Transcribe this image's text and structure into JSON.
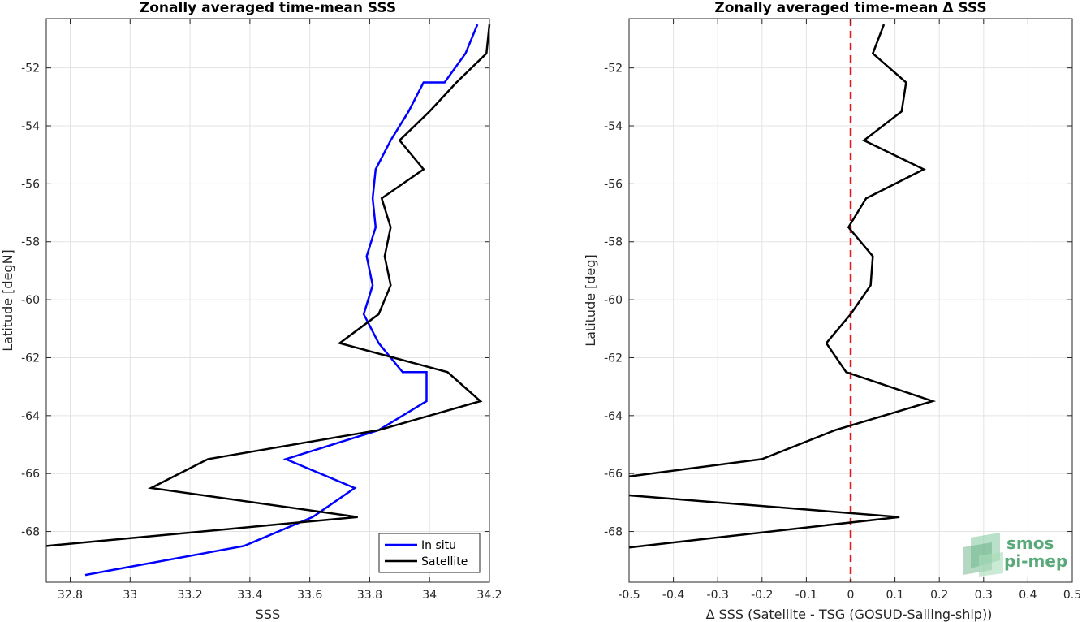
{
  "chart_data": [
    {
      "type": "line",
      "title": "Zonally averaged time-mean SSS",
      "xlabel": "SSS",
      "ylabel": "Latitude [degN]",
      "xlim": [
        32.72,
        34.2
      ],
      "ylim": [
        -69.75,
        -50.3
      ],
      "xticks": [
        32.8,
        33,
        33.2,
        33.4,
        33.6,
        33.8,
        34,
        34.2
      ],
      "xtick_labels": [
        "32.8",
        "33",
        "33.2",
        "33.4",
        "33.6",
        "33.8",
        "34",
        "34.2"
      ],
      "yticks": [
        -52,
        -54,
        -56,
        -58,
        -60,
        -62,
        -64,
        -66,
        -68
      ],
      "ytick_labels": [
        "-52",
        "-54",
        "-56",
        "-58",
        "-60",
        "-62",
        "-64",
        "-66",
        "-68"
      ],
      "grid": true,
      "legend_position": "bottom-right",
      "series": [
        {
          "name": "In situ",
          "color": "#0000ff",
          "points": [
            [
              34.16,
              -50.5
            ],
            [
              34.12,
              -51.5
            ],
            [
              34.05,
              -52.5
            ],
            [
              33.98,
              -52.5
            ],
            [
              33.93,
              -53.5
            ],
            [
              33.87,
              -54.5
            ],
            [
              33.82,
              -55.5
            ],
            [
              33.81,
              -56.5
            ],
            [
              33.82,
              -57.5
            ],
            [
              33.79,
              -58.5
            ],
            [
              33.81,
              -59.5
            ],
            [
              33.78,
              -60.5
            ],
            [
              33.83,
              -61.5
            ],
            [
              33.91,
              -62.5
            ],
            [
              33.99,
              -62.5
            ],
            [
              33.99,
              -63.5
            ],
            [
              33.83,
              -64.5
            ],
            [
              33.52,
              -65.5
            ],
            [
              33.75,
              -66.5
            ],
            [
              33.61,
              -67.5
            ],
            [
              33.38,
              -68.5
            ],
            [
              32.85,
              -69.5
            ]
          ]
        },
        {
          "name": "Satellite",
          "color": "#000000",
          "points": [
            [
              34.2,
              -50.5
            ],
            [
              34.19,
              -51.5
            ],
            [
              34.09,
              -52.5
            ],
            [
              34.0,
              -53.5
            ],
            [
              33.9,
              -54.5
            ],
            [
              33.98,
              -55.5
            ],
            [
              33.84,
              -56.5
            ],
            [
              33.87,
              -57.5
            ],
            [
              33.85,
              -58.5
            ],
            [
              33.87,
              -59.5
            ],
            [
              33.83,
              -60.5
            ],
            [
              33.7,
              -61.5
            ],
            [
              34.06,
              -62.5
            ],
            [
              34.17,
              -63.5
            ],
            [
              33.83,
              -64.5
            ],
            [
              33.26,
              -65.5
            ],
            [
              33.07,
              -66.5
            ],
            [
              33.76,
              -67.5
            ],
            [
              32.72,
              -68.5
            ]
          ]
        }
      ]
    },
    {
      "type": "line",
      "title": "Zonally averaged time-mean Δ SSS",
      "xlabel": "Δ SSS (Satellite - TSG (GOSUD-Sailing-ship))",
      "ylabel": "Latitude [deg]",
      "xlim": [
        -0.5,
        0.5
      ],
      "ylim": [
        -69.75,
        -50.3
      ],
      "xticks": [
        -0.5,
        -0.4,
        -0.3,
        -0.2,
        -0.1,
        0,
        0.1,
        0.2,
        0.3,
        0.4,
        0.5
      ],
      "xtick_labels": [
        "-0.5",
        "-0.4",
        "-0.3",
        "-0.2",
        "-0.1",
        "0",
        "0.1",
        "0.2",
        "0.3",
        "0.4",
        "0.5"
      ],
      "yticks": [
        -52,
        -54,
        -56,
        -58,
        -60,
        -62,
        -64,
        -66,
        -68
      ],
      "ytick_labels": [
        "-52",
        "-54",
        "-56",
        "-58",
        "-60",
        "-62",
        "-64",
        "-66",
        "-68"
      ],
      "grid": true,
      "reference_line": {
        "x": 0,
        "color": "#e41a1c",
        "style": "dashed"
      },
      "series": [
        {
          "color": "#000000",
          "points": [
            [
              0.075,
              -50.5
            ],
            [
              0.05,
              -51.5
            ],
            [
              0.125,
              -52.5
            ],
            [
              0.115,
              -53.5
            ],
            [
              0.03,
              -54.5
            ],
            [
              0.165,
              -55.5
            ],
            [
              0.035,
              -56.5
            ],
            [
              -0.005,
              -57.5
            ],
            [
              0.05,
              -58.5
            ],
            [
              0.045,
              -59.5
            ],
            [
              0.0,
              -60.5
            ],
            [
              -0.055,
              -61.5
            ],
            [
              -0.01,
              -62.5
            ],
            [
              0.185,
              -63.5
            ],
            [
              -0.035,
              -64.5
            ],
            [
              -0.2,
              -65.5
            ],
            [
              -0.5,
              -66.1
            ]
          ]
        },
        {
          "color": "#000000",
          "points": [
            [
              -0.5,
              -66.75
            ],
            [
              0.11,
              -67.5
            ],
            [
              -0.5,
              -68.55
            ]
          ]
        }
      ]
    }
  ],
  "logo": {
    "line1": "smos",
    "line2": "pi-mep"
  }
}
